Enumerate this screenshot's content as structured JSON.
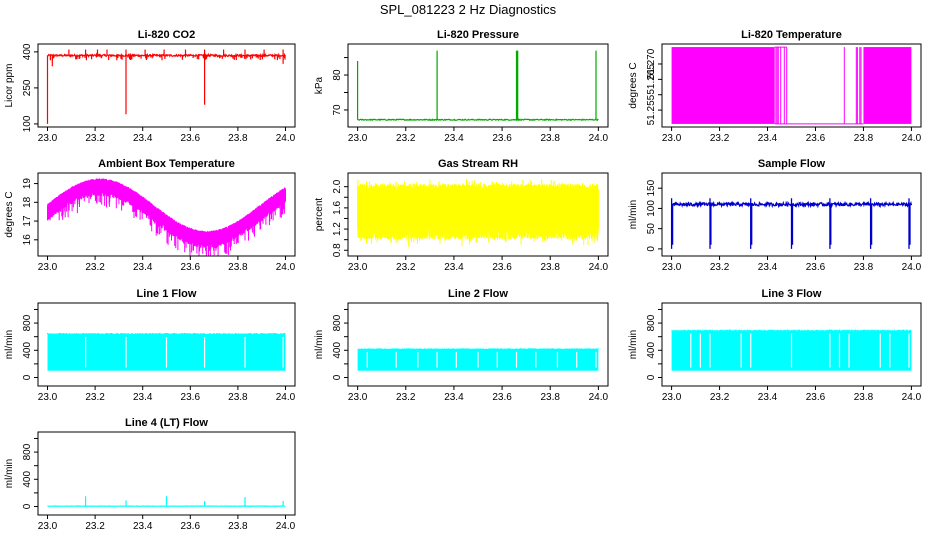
{
  "figure": {
    "title": "SPL_081223  2 Hz Diagnostics",
    "background": "#ffffff"
  },
  "chart_data": [
    {
      "id": "co2",
      "type": "line",
      "title": "Li-820 CO2",
      "ylabel": "Licor ppm",
      "color": "#ff0000",
      "xlim": [
        23.0,
        24.0
      ],
      "xticks": [
        23.0,
        23.2,
        23.4,
        23.6,
        23.8,
        24.0
      ],
      "xtick_labels": [
        "23.0",
        "23.2",
        "23.4",
        "23.6",
        "23.8",
        "24.0"
      ],
      "ylim": [
        100,
        420
      ],
      "yticks": [
        100,
        250,
        400
      ],
      "ytick_labels": [
        "100",
        "250",
        "400"
      ],
      "pattern": "spiky",
      "base": 385,
      "noise": 4,
      "hairs": 8,
      "spikes_up": [
        23.09,
        23.16,
        23.21,
        23.25,
        23.33,
        23.41,
        23.49,
        23.58,
        23.66,
        23.74,
        23.83,
        23.91,
        23.99
      ],
      "spike_up_to": 410,
      "dips": [
        [
          23.0,
          100
        ],
        [
          23.02,
          340
        ],
        [
          23.33,
          140
        ],
        [
          23.66,
          180
        ],
        [
          23.99,
          350
        ]
      ]
    },
    {
      "id": "pressure",
      "type": "line",
      "title": "Li-820 Pressure",
      "ylabel": "kPa",
      "color": "#00aa00",
      "xlim": [
        23.0,
        24.0
      ],
      "xticks": [
        23.0,
        23.2,
        23.4,
        23.6,
        23.8,
        24.0
      ],
      "xtick_labels": [
        "23.0",
        "23.2",
        "23.4",
        "23.6",
        "23.8",
        "24.0"
      ],
      "ylim": [
        66,
        88
      ],
      "yticks": [
        70,
        75,
        80,
        85
      ],
      "ytick_labels": [
        "70",
        "",
        "80",
        ""
      ],
      "pattern": "flat_spikes",
      "base": 67.2,
      "noise": 0.15,
      "spikes": [
        [
          23.0,
          84
        ],
        [
          23.33,
          87
        ],
        [
          23.66,
          87
        ],
        [
          23.665,
          87
        ],
        [
          23.99,
          87
        ]
      ]
    },
    {
      "id": "temperature",
      "type": "line",
      "title": "Li-820 Temperature",
      "ylabel": "degrees C",
      "color": "#ff00ff",
      "xlim": [
        23.0,
        24.0
      ],
      "xticks": [
        23.0,
        23.2,
        23.4,
        23.6,
        23.8,
        24.0
      ],
      "xtick_labels": [
        "23.0",
        "23.2",
        "23.4",
        "23.6",
        "23.8",
        "24.0"
      ],
      "ylim": [
        51.2505,
        51.2755
      ],
      "yticks": [
        51.255,
        51.26,
        51.265,
        51.27
      ],
      "ytick_labels": [
        "51.255",
        "",
        "51.265",
        "51.270"
      ],
      "pattern": "quantized",
      "levels": [
        51.2505,
        51.2755
      ],
      "filled_ranges": [
        [
          23.0,
          23.43
        ],
        [
          23.8,
          24.0
        ]
      ],
      "sparse_range": [
        23.43,
        23.8
      ],
      "sparse_lines": [
        23.435,
        23.44,
        23.445,
        23.455,
        23.47,
        23.48,
        23.72,
        23.77,
        23.775,
        23.785,
        23.79
      ]
    },
    {
      "id": "box_temp",
      "type": "line",
      "title": "Ambient Box Temperature",
      "ylabel": "degrees C",
      "color": "#ff00ff",
      "xlim": [
        23.0,
        24.0
      ],
      "xticks": [
        23.0,
        23.2,
        23.4,
        23.6,
        23.8,
        24.0
      ],
      "xtick_labels": [
        "23.0",
        "23.2",
        "23.4",
        "23.6",
        "23.8",
        "24.0"
      ],
      "ylim": [
        15.3,
        19.4
      ],
      "yticks": [
        16,
        17,
        18,
        19
      ],
      "ytick_labels": [
        "16",
        "17",
        "18",
        "19"
      ],
      "pattern": "wave",
      "mid": 17.5,
      "amp": 1.4,
      "period": 0.9,
      "phase_peak": 23.22,
      "band": 0.8,
      "dips": 0.9
    },
    {
      "id": "rh",
      "type": "line",
      "title": "Gas Stream RH",
      "ylabel": "percent",
      "color": "#ffff00",
      "xlim": [
        23.0,
        24.0
      ],
      "xticks": [
        23.0,
        23.2,
        23.4,
        23.6,
        23.8,
        24.0
      ],
      "xtick_labels": [
        "23.0",
        "23.2",
        "23.4",
        "23.6",
        "23.8",
        "24.0"
      ],
      "ylim": [
        0.75,
        2.2
      ],
      "yticks": [
        0.8,
        1.0,
        1.2,
        1.4,
        1.6,
        1.8,
        2.0
      ],
      "ytick_labels": [
        "0.8",
        "",
        "1.2",
        "",
        "1.6",
        "",
        "2.0"
      ],
      "pattern": "noise_band",
      "lo": 1.0,
      "hi": 2.05,
      "lo_extreme": 0.85,
      "hi_extreme": 2.15
    },
    {
      "id": "sample_flow",
      "type": "line",
      "title": "Sample Flow",
      "ylabel": "ml/min",
      "color": "#0000cc",
      "xlim": [
        23.0,
        24.0
      ],
      "xticks": [
        23.0,
        23.2,
        23.4,
        23.6,
        23.8,
        24.0
      ],
      "xtick_labels": [
        "23.0",
        "23.2",
        "23.4",
        "23.6",
        "23.8",
        "24.0"
      ],
      "ylim": [
        -10,
        180
      ],
      "yticks": [
        0,
        50,
        100,
        150
      ],
      "ytick_labels": [
        "0",
        "50",
        "100",
        "150"
      ],
      "pattern": "flow_dips",
      "base": 110,
      "noise": 4,
      "dips": [
        23.0,
        23.16,
        23.33,
        23.5,
        23.66,
        23.83,
        23.99
      ],
      "dip_to": 0,
      "overshoot": 125
    },
    {
      "id": "line1",
      "type": "line",
      "title": "Line 1 Flow",
      "ylabel": "ml/min",
      "color": "#00ffff",
      "xlim": [
        23.0,
        24.0
      ],
      "xticks": [
        23.0,
        23.2,
        23.4,
        23.6,
        23.8,
        24.0
      ],
      "xtick_labels": [
        "23.0",
        "23.2",
        "23.4",
        "23.6",
        "23.8",
        "24.0"
      ],
      "ylim": [
        -80,
        1050
      ],
      "yticks": [
        0,
        200,
        400,
        600,
        800,
        1000
      ],
      "ytick_labels": [
        "0",
        "",
        "400",
        "",
        "800",
        ""
      ],
      "pattern": "square_band",
      "lo": 100,
      "hi": 640,
      "hi_jitter": 15,
      "gaps": [
        23.16,
        23.33,
        23.5,
        23.66,
        23.83,
        23.99
      ]
    },
    {
      "id": "line2",
      "type": "line",
      "title": "Line 2 Flow",
      "ylabel": "ml/min",
      "color": "#00ffff",
      "xlim": [
        23.0,
        24.0
      ],
      "xticks": [
        23.0,
        23.2,
        23.4,
        23.6,
        23.8,
        24.0
      ],
      "xtick_labels": [
        "23.0",
        "23.2",
        "23.4",
        "23.6",
        "23.8",
        "24.0"
      ],
      "ylim": [
        -80,
        1050
      ],
      "yticks": [
        0,
        200,
        400,
        600,
        800,
        1000
      ],
      "ytick_labels": [
        "0",
        "",
        "400",
        "",
        "800",
        ""
      ],
      "pattern": "square_band",
      "lo": 100,
      "hi": 420,
      "hi_jitter": 12,
      "gaps": [
        23.04,
        23.16,
        23.25,
        23.33,
        23.41,
        23.5,
        23.58,
        23.66,
        23.74,
        23.83,
        23.91,
        23.99
      ]
    },
    {
      "id": "line3",
      "type": "line",
      "title": "Line 3 Flow",
      "ylabel": "ml/min",
      "color": "#00ffff",
      "xlim": [
        23.0,
        24.0
      ],
      "xticks": [
        23.0,
        23.2,
        23.4,
        23.6,
        23.8,
        24.0
      ],
      "xtick_labels": [
        "23.0",
        "23.2",
        "23.4",
        "23.6",
        "23.8",
        "24.0"
      ],
      "ylim": [
        -80,
        1050
      ],
      "yticks": [
        0,
        200,
        400,
        600,
        800,
        1000
      ],
      "ytick_labels": [
        "0",
        "",
        "400",
        "",
        "800",
        ""
      ],
      "pattern": "square_band",
      "lo": 100,
      "hi": 690,
      "hi_jitter": 15,
      "gaps": [
        23.08,
        23.12,
        23.16,
        23.29,
        23.33,
        23.5,
        23.66,
        23.7,
        23.74,
        23.87,
        23.91,
        23.99
      ]
    },
    {
      "id": "line4",
      "type": "line",
      "title": "Line 4 (LT) Flow",
      "ylabel": "ml/min",
      "color": "#00ffff",
      "xlim": [
        23.0,
        24.0
      ],
      "xticks": [
        23.0,
        23.2,
        23.4,
        23.6,
        23.8,
        24.0
      ],
      "xtick_labels": [
        "23.0",
        "23.2",
        "23.4",
        "23.6",
        "23.8",
        "24.0"
      ],
      "ylim": [
        -80,
        1050
      ],
      "yticks": [
        0,
        200,
        400,
        600,
        800,
        1000
      ],
      "ytick_labels": [
        "0",
        "",
        "400",
        "",
        "800",
        ""
      ],
      "pattern": "flat_spikes",
      "base": 5,
      "noise": 3,
      "spikes": [
        [
          23.16,
          150
        ],
        [
          23.33,
          90
        ],
        [
          23.5,
          150
        ],
        [
          23.66,
          80
        ],
        [
          23.83,
          140
        ],
        [
          23.99,
          80
        ]
      ]
    }
  ]
}
